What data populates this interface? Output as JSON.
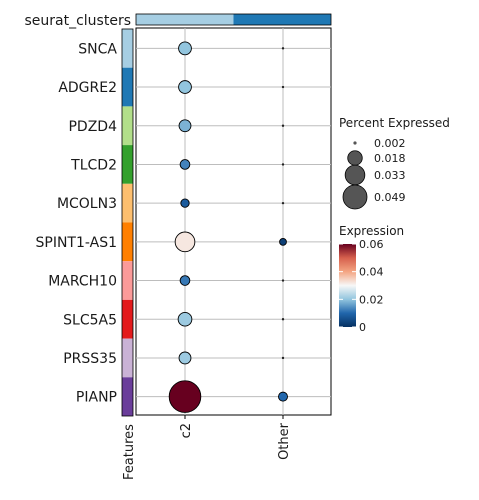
{
  "chart_data": {
    "type": "dot",
    "cluster_bar_label": "seurat_clusters",
    "cluster_bar_colors": [
      "#a6cee3",
      "#1f78b4"
    ],
    "features_axis_label": "Features",
    "genes": [
      "SNCA",
      "ADGRE2",
      "PDZD4",
      "TLCD2",
      "MCOLN3",
      "SPINT1-AS1",
      "MARCH10",
      "SLC5A5",
      "PRSS35",
      "PIANP"
    ],
    "gene_colors": [
      "#a6cee3",
      "#1f78b4",
      "#b2df8a",
      "#33a02c",
      "#fdbf6f",
      "#ff7f00",
      "#fb9a99",
      "#e31a1c",
      "#cab2d6",
      "#6a3d9a"
    ],
    "groups": [
      "c2",
      "Other"
    ],
    "percent_expressed": [
      [
        0.014,
        0.002
      ],
      [
        0.014,
        0.002
      ],
      [
        0.012,
        0.002
      ],
      [
        0.008,
        0.002
      ],
      [
        0.006,
        0.002
      ],
      [
        0.033,
        0.004
      ],
      [
        0.008,
        0.002
      ],
      [
        0.016,
        0.002
      ],
      [
        0.012,
        0.002
      ],
      [
        0.085,
        0.007
      ]
    ],
    "expression": [
      [
        0.02,
        0.0
      ],
      [
        0.02,
        0.0
      ],
      [
        0.018,
        0.0
      ],
      [
        0.013,
        0.0
      ],
      [
        0.008,
        0.0
      ],
      [
        0.032,
        0.003
      ],
      [
        0.012,
        0.0
      ],
      [
        0.021,
        0.0
      ],
      [
        0.021,
        0.0
      ],
      [
        0.06,
        0.01
      ]
    ],
    "size_legend": {
      "title": "Percent Expressed",
      "labels": [
        "0.002",
        "0.018",
        "0.033",
        "0.049"
      ],
      "values": [
        0.002,
        0.018,
        0.033,
        0.049
      ]
    },
    "color_legend": {
      "title": "Expression",
      "ticks": [
        "0.06",
        "0.04",
        "0.02",
        "0"
      ],
      "tick_values": [
        0.06,
        0.04,
        0.02,
        0
      ],
      "range": [
        0,
        0.06
      ]
    }
  }
}
